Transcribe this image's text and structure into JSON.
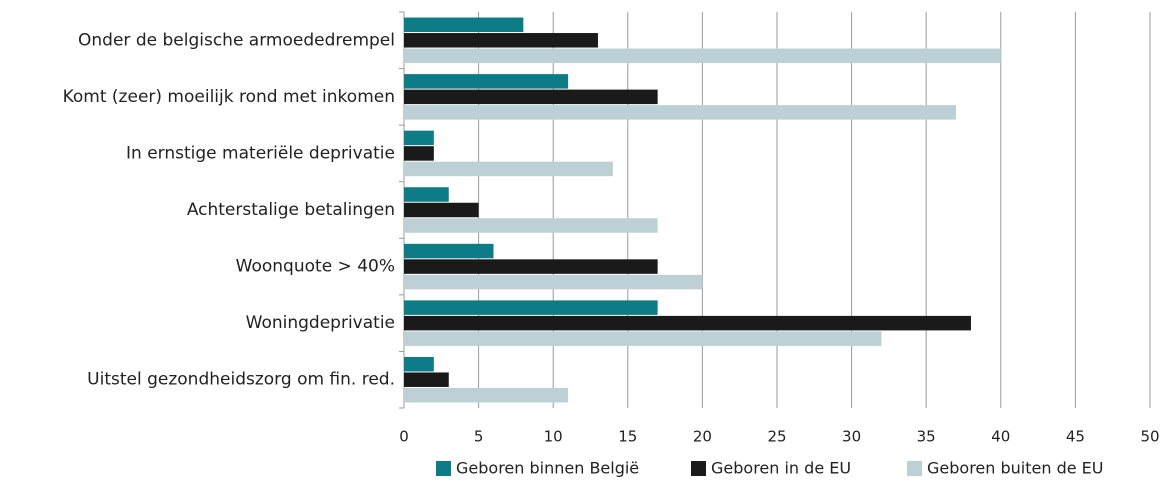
{
  "chart_data": {
    "type": "barh",
    "categories": [
      "Onder de belgische armoededrempel",
      "Komt (zeer) moeilijk rond met inkomen",
      "In ernstige materiële deprivatie",
      "Achterstalige betalingen",
      "Woonquote > 40%",
      "Woningdeprivatie",
      "Uitstel gezondheidszorg om fin. red."
    ],
    "series": [
      {
        "name": "Geboren binnen België",
        "color": "#0e7c86",
        "values": [
          8,
          11,
          2,
          3,
          6,
          17,
          2
        ]
      },
      {
        "name": "Geboren in de EU",
        "color": "#1a1a1a",
        "values": [
          13,
          17,
          2,
          5,
          17,
          38,
          3
        ]
      },
      {
        "name": "Geboren buiten de EU",
        "color": "#bdd0d6",
        "values": [
          40,
          37,
          14,
          17,
          20,
          32,
          11
        ]
      }
    ],
    "xlim": [
      0,
      50
    ],
    "xticks": [
      0,
      5,
      10,
      15,
      20,
      25,
      30,
      35,
      40,
      45,
      50
    ],
    "grid": true,
    "legend": "bottom"
  }
}
